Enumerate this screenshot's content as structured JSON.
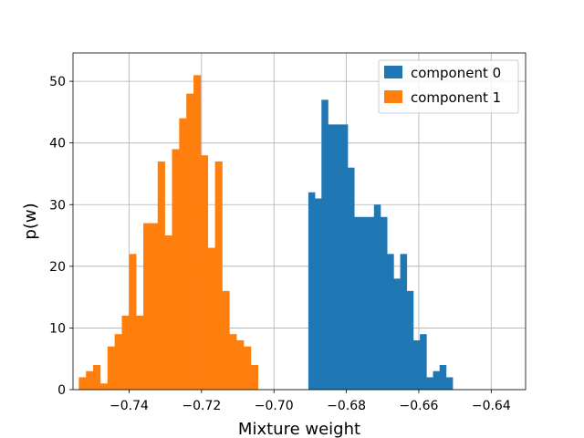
{
  "chart_data": {
    "type": "bar",
    "subtype": "histogram",
    "xlabel": "Mixture weight",
    "ylabel": "p(w)",
    "xlim": [
      -0.7555,
      -0.6305
    ],
    "ylim": [
      0,
      54.6
    ],
    "grid": true,
    "legend_position": "top-right",
    "x_ticks": [
      {
        "value": -0.74,
        "label": "−0.74"
      },
      {
        "value": -0.72,
        "label": "−0.72"
      },
      {
        "value": -0.7,
        "label": "−0.70"
      },
      {
        "value": -0.68,
        "label": "−0.68"
      },
      {
        "value": -0.66,
        "label": "−0.66"
      },
      {
        "value": -0.64,
        "label": "−0.64"
      }
    ],
    "y_ticks": [
      {
        "value": 0,
        "label": "0"
      },
      {
        "value": 10,
        "label": "10"
      },
      {
        "value": 20,
        "label": "20"
      },
      {
        "value": 30,
        "label": "30"
      },
      {
        "value": 40,
        "label": "40"
      },
      {
        "value": 50,
        "label": "50"
      }
    ],
    "series": [
      {
        "name": "component 0",
        "color": "#1f77b4",
        "bin_start": -0.6905,
        "bin_width": 0.001812,
        "counts": [
          32,
          31,
          47,
          43,
          43,
          43,
          36,
          28,
          28,
          28,
          30,
          28,
          22,
          18,
          22,
          16,
          8,
          9,
          2,
          3,
          4,
          2
        ]
      },
      {
        "name": "component 1",
        "color": "#ff7f0e",
        "bin_start": -0.7539,
        "bin_width": 0.00198,
        "counts": [
          2,
          3,
          4,
          1,
          7,
          9,
          12,
          22,
          12,
          27,
          27,
          37,
          25,
          39,
          44,
          48,
          51,
          38,
          23,
          37,
          16,
          9,
          8,
          7,
          4
        ]
      }
    ]
  }
}
